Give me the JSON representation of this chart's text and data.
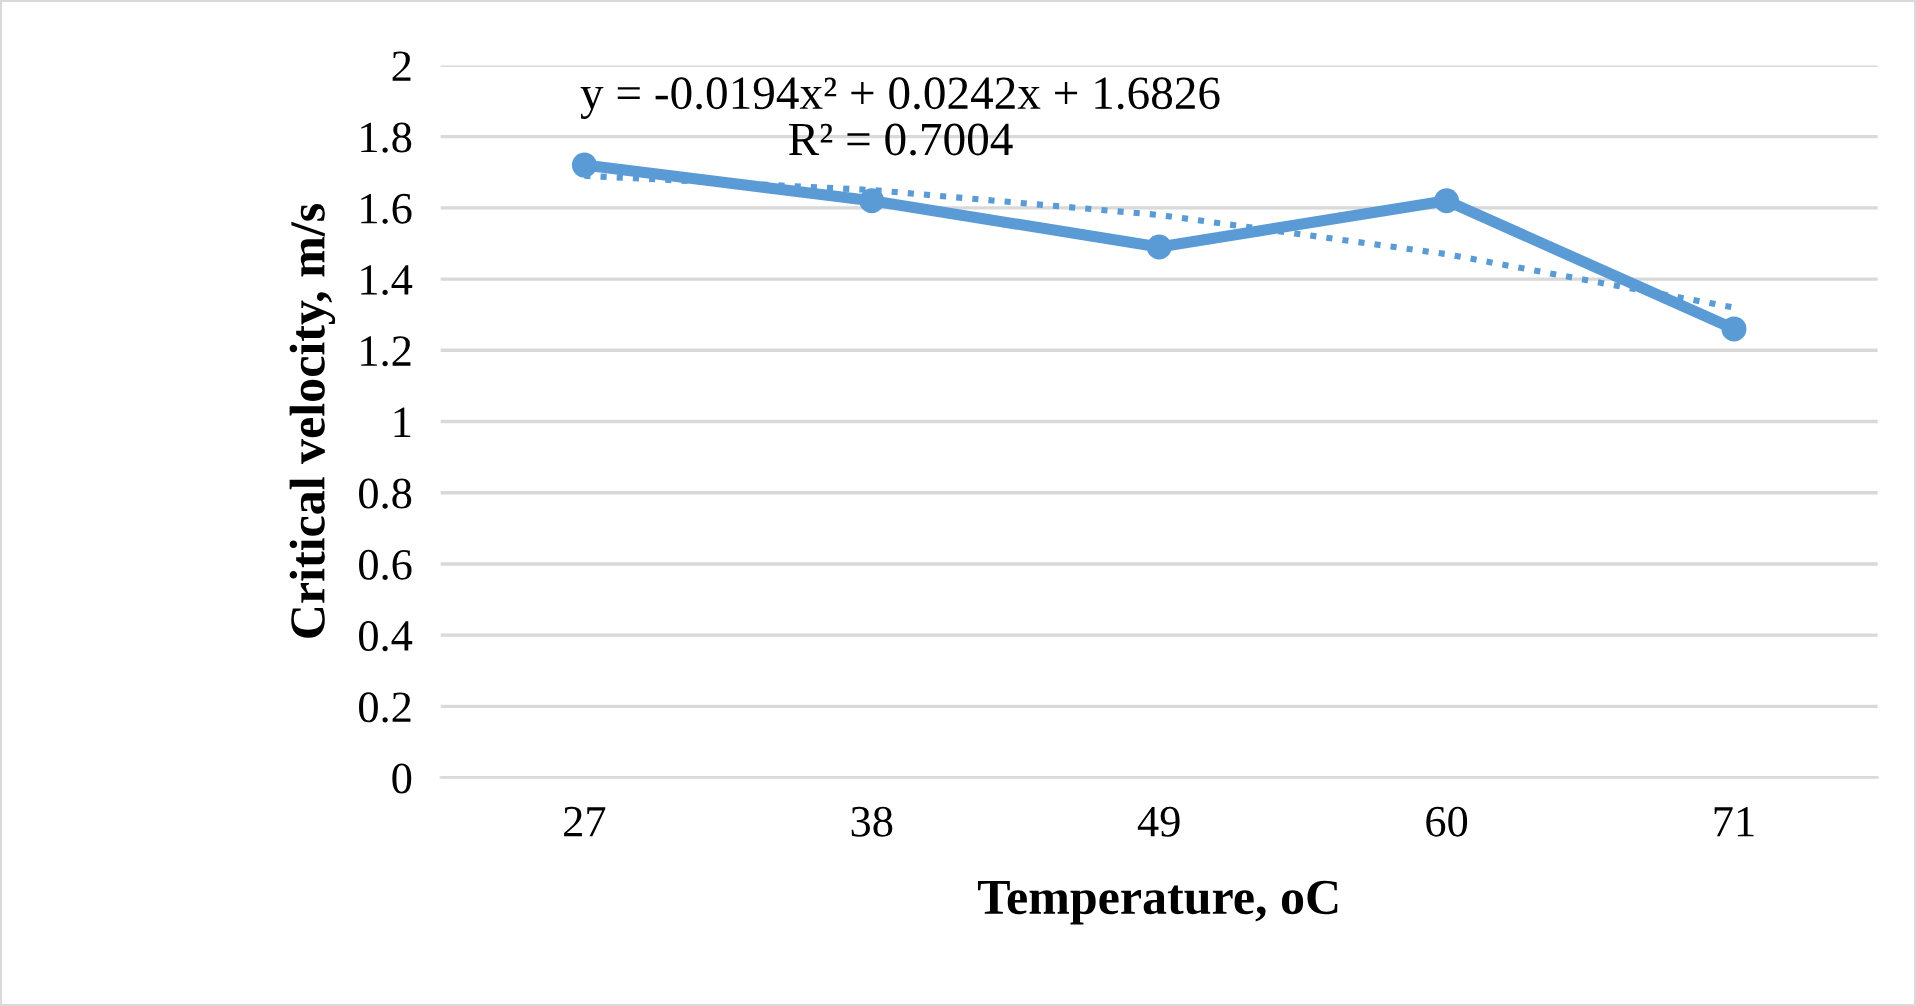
{
  "chart_data": {
    "type": "line",
    "xlabel": "Temperature, oC",
    "ylabel": "Critical velocity, m/s",
    "categories": [
      "27",
      "38",
      "49",
      "60",
      "71"
    ],
    "series": [
      {
        "color": "#5b9bd5",
        "values": [
          1.72,
          1.62,
          1.49,
          1.62,
          1.26
        ],
        "marker": "circle",
        "line_style": "solid"
      },
      {
        "color": "#5b9bd5",
        "values": [
          1.69,
          1.65,
          1.58,
          1.47,
          1.32
        ],
        "marker": "none",
        "line_style": "dotted"
      }
    ],
    "annotations": [
      "y = -0.0194x² + 0.0242x + 1.6826\nR² = 0.7004"
    ],
    "ylim": [
      0,
      2
    ],
    "yticks": [
      0,
      0.2,
      0.4,
      0.6,
      0.8,
      1,
      1.2,
      1.4,
      1.6,
      1.8,
      2
    ],
    "grid": "y"
  }
}
